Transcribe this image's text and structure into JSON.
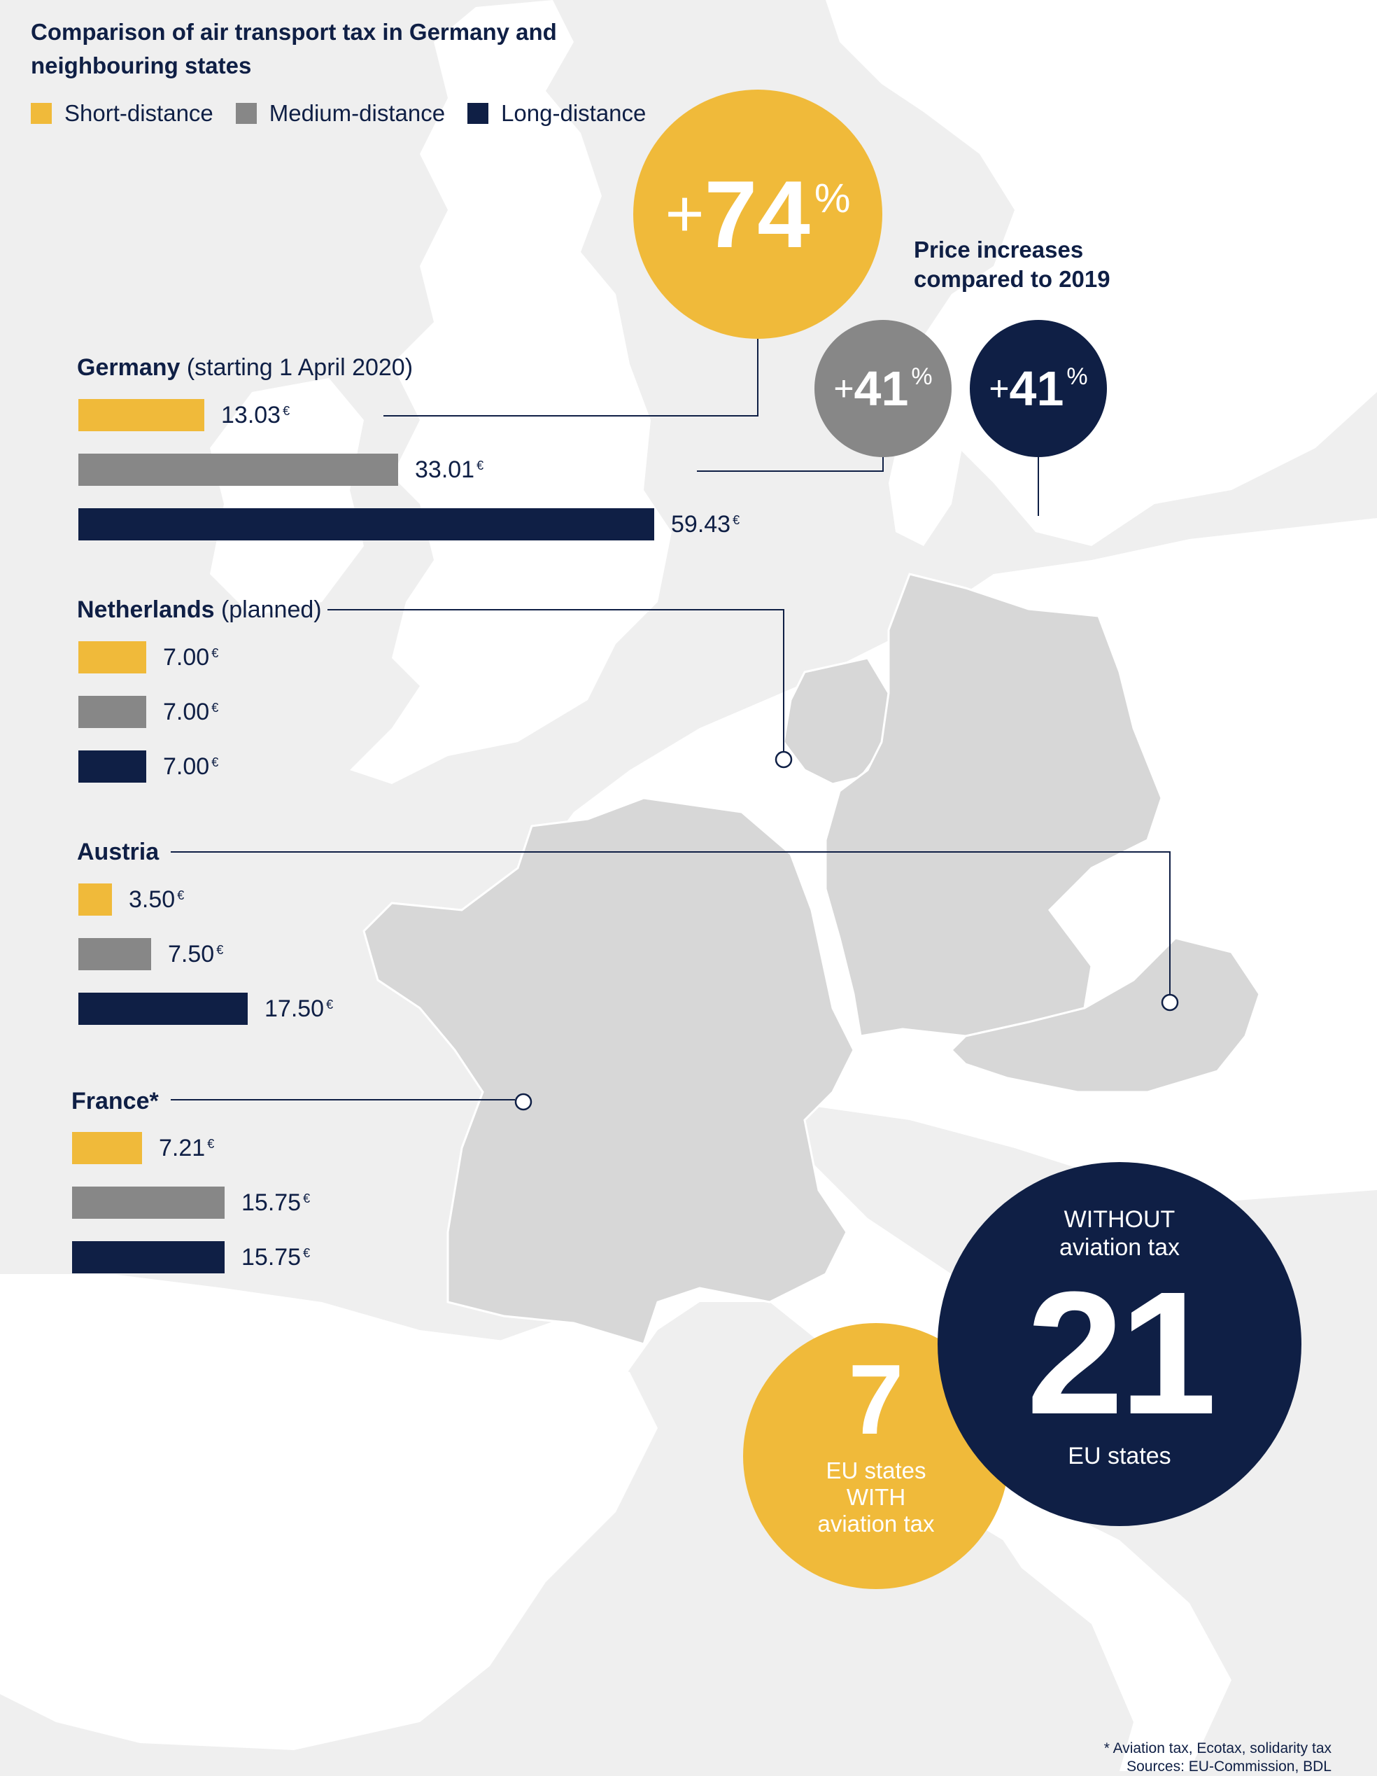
{
  "title": "Comparison of air transport tax in Germany and neighbouring states",
  "legend": [
    {
      "label": "Short-distance",
      "color": "#f0ba3a"
    },
    {
      "label": "Medium-distance",
      "color": "#878787"
    },
    {
      "label": "Long-distance",
      "color": "#0f1f45"
    }
  ],
  "currency": "€",
  "chart_data": {
    "type": "bar",
    "orientation": "horizontal",
    "title": "Comparison of air transport tax in Germany and neighbouring states",
    "categories": [
      "Germany",
      "Netherlands",
      "Austria",
      "France"
    ],
    "category_notes": [
      "(starting 1 April 2020)",
      "(planned)",
      "",
      "*"
    ],
    "series": [
      {
        "name": "Short-distance",
        "color": "#f0ba3a",
        "values": [
          13.03,
          7.0,
          3.5,
          7.21
        ],
        "labels": [
          "13.03",
          "7.00",
          "3.50",
          "7.21"
        ]
      },
      {
        "name": "Medium-distance",
        "color": "#878787",
        "values": [
          33.01,
          7.0,
          7.5,
          15.75
        ],
        "labels": [
          "33.01",
          "7.00",
          "7.50",
          "15.75"
        ]
      },
      {
        "name": "Long-distance",
        "color": "#0f1f45",
        "values": [
          59.43,
          7.0,
          17.5,
          15.75
        ],
        "labels": [
          "59.43",
          "7.00",
          "17.50",
          "15.75"
        ]
      }
    ],
    "legend_position": "top-left",
    "unit": "€"
  },
  "price_increases": {
    "caption": "Price increases compared to 2019",
    "items": [
      {
        "plus": "+",
        "value": "74",
        "unit": "%",
        "series": "Short-distance",
        "color": "#f0ba3a"
      },
      {
        "plus": "+",
        "value": "41",
        "unit": "%",
        "series": "Medium-distance",
        "color": "#878787"
      },
      {
        "plus": "+",
        "value": "41",
        "unit": "%",
        "series": "Long-distance",
        "color": "#0f1f45"
      }
    ]
  },
  "eu_states": {
    "with_tax": {
      "number": "7",
      "line1": "EU states",
      "line2": "WITH",
      "line3": "aviation tax",
      "color": "#f0ba3a"
    },
    "without_tax": {
      "line1": "WITHOUT",
      "line2": "aviation tax",
      "number": "21",
      "line3": "EU states",
      "color": "#0f1f45"
    }
  },
  "footnote": {
    "line1": "* Aviation tax, Ecotax, solidarity tax",
    "line2": "Sources: EU-Commission, BDL"
  }
}
